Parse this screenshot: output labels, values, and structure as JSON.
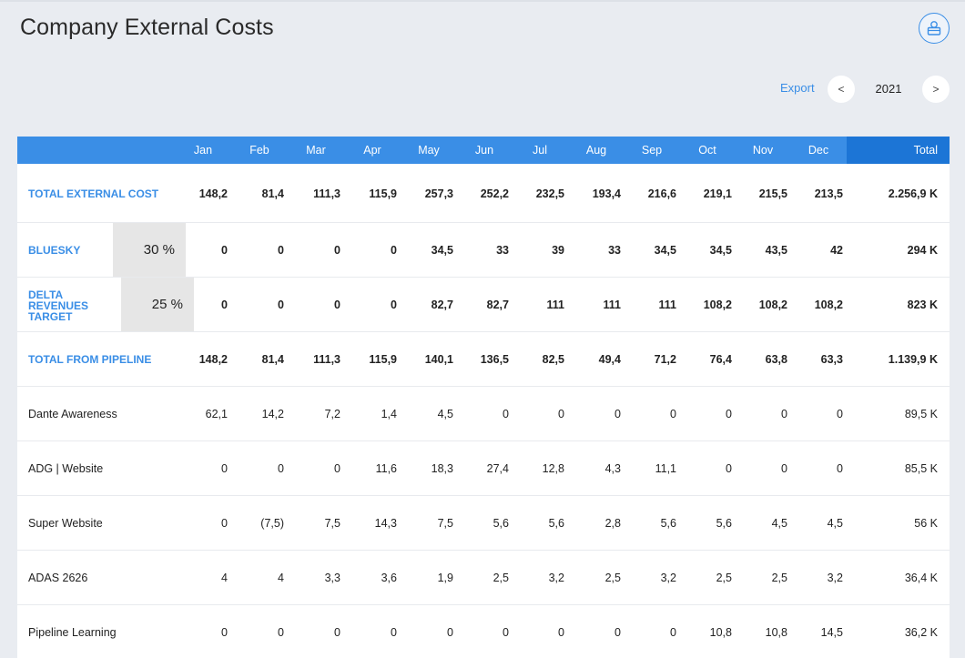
{
  "page": {
    "title": "Company External Costs"
  },
  "toolbar": {
    "export_label": "Export",
    "prev_label": "<",
    "next_label": ">",
    "year": "2021"
  },
  "table": {
    "months": [
      "Jan",
      "Feb",
      "Mar",
      "Apr",
      "May",
      "Jun",
      "Jul",
      "Aug",
      "Sep",
      "Oct",
      "Nov",
      "Dec"
    ],
    "total_header": "Total",
    "rows": [
      {
        "label": "TOTAL EXTERNAL COST",
        "values": [
          "148,2",
          "81,4",
          "111,3",
          "115,9",
          "257,3",
          "252,2",
          "232,5",
          "193,4",
          "216,6",
          "219,1",
          "215,5",
          "213,5"
        ],
        "total": "2.256,9 K"
      },
      {
        "label": "BLUESKY",
        "percent": "30 %",
        "values": [
          "0",
          "0",
          "0",
          "0",
          "34,5",
          "33",
          "39",
          "33",
          "34,5",
          "34,5",
          "43,5",
          "42"
        ],
        "total": "294 K"
      },
      {
        "label_lines": [
          "DELTA",
          "REVENUES",
          "TARGET"
        ],
        "percent": "25 %",
        "values": [
          "0",
          "0",
          "0",
          "0",
          "82,7",
          "82,7",
          "111",
          "111",
          "111",
          "108,2",
          "108,2",
          "108,2"
        ],
        "total": "823 K"
      },
      {
        "label": "TOTAL FROM PIPELINE",
        "values": [
          "148,2",
          "81,4",
          "111,3",
          "115,9",
          "140,1",
          "136,5",
          "82,5",
          "49,4",
          "71,2",
          "76,4",
          "63,8",
          "63,3"
        ],
        "total": "1.139,9 K"
      },
      {
        "label": "Dante Awareness",
        "values": [
          "62,1",
          "14,2",
          "7,2",
          "1,4",
          "4,5",
          "0",
          "0",
          "0",
          "0",
          "0",
          "0",
          "0"
        ],
        "total": "89,5 K"
      },
      {
        "label": "ADG | Website",
        "values": [
          "0",
          "0",
          "0",
          "11,6",
          "18,3",
          "27,4",
          "12,8",
          "4,3",
          "11,1",
          "0",
          "0",
          "0"
        ],
        "total": "85,5 K"
      },
      {
        "label": "Super Website",
        "values": [
          "0",
          "(7,5)",
          "7,5",
          "14,3",
          "7,5",
          "5,6",
          "5,6",
          "2,8",
          "5,6",
          "5,6",
          "4,5",
          "4,5"
        ],
        "total": "56 K"
      },
      {
        "label": "ADAS 2626",
        "values": [
          "4",
          "4",
          "3,3",
          "3,6",
          "1,9",
          "2,5",
          "3,2",
          "2,5",
          "3,2",
          "2,5",
          "2,5",
          "3,2"
        ],
        "total": "36,4 K"
      },
      {
        "label": "Pipeline Learning",
        "values": [
          "0",
          "0",
          "0",
          "0",
          "0",
          "0",
          "0",
          "0",
          "0",
          "10,8",
          "10,8",
          "14,5"
        ],
        "total": "36,2 K"
      }
    ]
  },
  "colors": {
    "accent": "#3a8ee6",
    "total_header": "#1c75d6",
    "background": "#e9ecf1",
    "percent_box": "#e6e6e6"
  },
  "icons": {
    "profile": "profile-settings-icon"
  }
}
